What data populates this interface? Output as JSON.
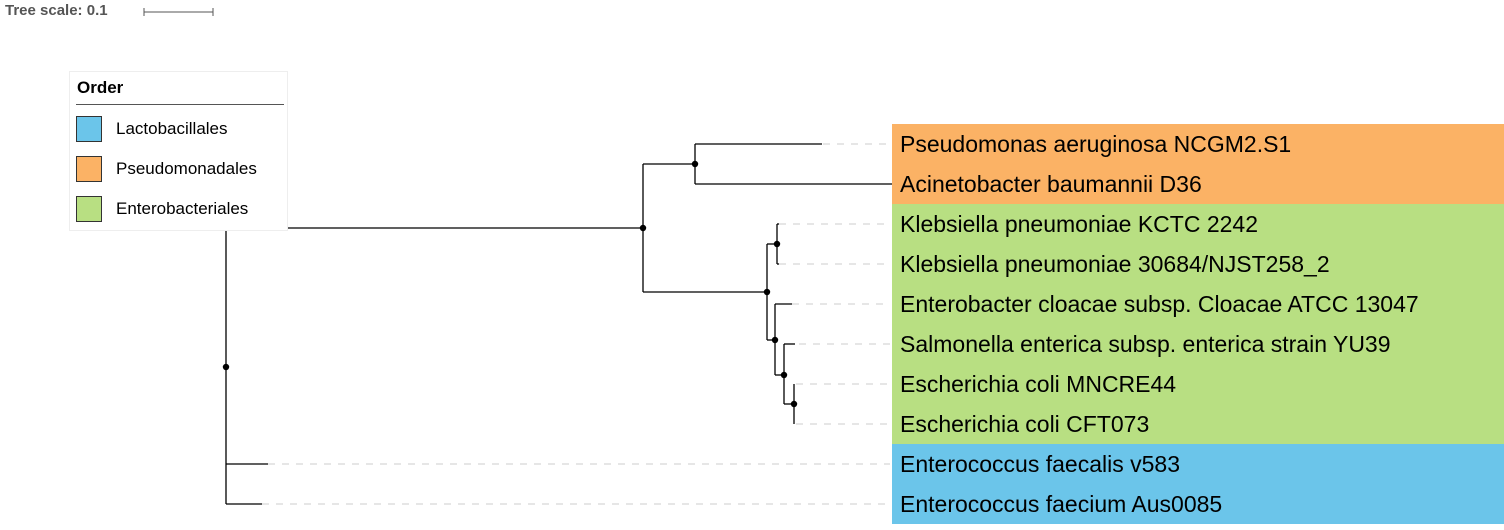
{
  "tree_scale": {
    "label": "Tree scale: 0.1"
  },
  "legend": {
    "title": "Order",
    "items": [
      {
        "name": "Lactobacillales",
        "color": "#6bc5ea"
      },
      {
        "name": "Pseudomonadales",
        "color": "#fbb265"
      },
      {
        "name": "Enterobacteriales",
        "color": "#b8df82"
      }
    ]
  },
  "leaves": [
    {
      "label": "Pseudomonas aeruginosa NCGM2.S1",
      "order": "Pseudomonadales"
    },
    {
      "label": "Acinetobacter baumannii D36",
      "order": "Pseudomonadales"
    },
    {
      "label": "Klebsiella pneumoniae KCTC 2242",
      "order": "Enterobacteriales"
    },
    {
      "label": "Klebsiella pneumoniae 30684/NJST258_2",
      "order": "Enterobacteriales"
    },
    {
      "label": "Enterobacter cloacae subsp. Cloacae ATCC 13047",
      "order": "Enterobacteriales"
    },
    {
      "label": "Salmonella enterica subsp. enterica strain YU39",
      "order": "Enterobacteriales"
    },
    {
      "label": "Escherichia coli MNCRE44",
      "order": "Enterobacteriales"
    },
    {
      "label": "Escherichia coli CFT073",
      "order": "Enterobacteriales"
    },
    {
      "label": "Enterococcus faecalis v583",
      "order": "Lactobacillales"
    },
    {
      "label": "Enterococcus faecium Aus0085",
      "order": "Lactobacillales"
    }
  ]
}
